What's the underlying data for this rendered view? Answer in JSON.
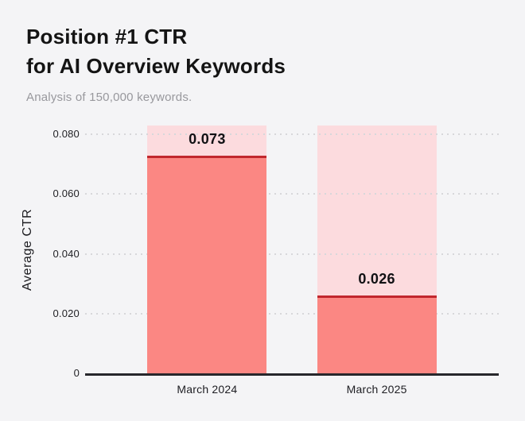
{
  "header": {
    "title_line1": "Position #1 CTR",
    "title_line2": "for AI Overview Keywords",
    "subtitle": "Analysis of 150,000 keywords."
  },
  "chart_data": {
    "type": "bar",
    "title": "Position #1 CTR for AI Overview Keywords",
    "subtitle": "Analysis of 150,000 keywords.",
    "categories": [
      "March 2024",
      "March 2025"
    ],
    "values": [
      0.073,
      0.026
    ],
    "value_labels": [
      "0.073",
      "0.026"
    ],
    "xlabel": "",
    "ylabel": "Average CTR",
    "ylim": [
      0,
      0.083
    ],
    "yticks": [
      0,
      0.02,
      0.04,
      0.06,
      0.08
    ],
    "ytick_labels": [
      "0",
      "0.020",
      "0.040",
      "0.060",
      "0.080"
    ],
    "grid": "horizontal-dotted",
    "legend_position": "none",
    "bar_background_extends_to": 0.083,
    "colors": {
      "page_background": "#f4f4f6",
      "bar_fill": "#fb8783",
      "bar_background": "#fcdbde",
      "bar_top_line": "#c1272d",
      "axis_line": "#27272c",
      "gridline": "#d7d7da",
      "title_text": "#141414",
      "subtitle_text": "#98989d",
      "tick_text": "#222226"
    }
  }
}
